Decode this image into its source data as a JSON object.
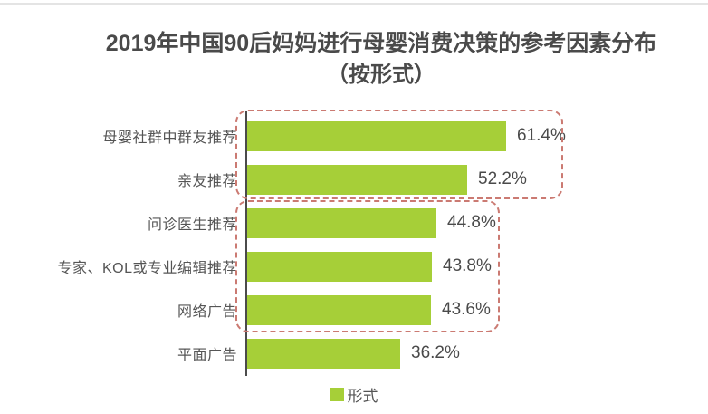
{
  "title": {
    "line1": "2019年中国90后妈妈进行母婴消费决策的参考因素分布",
    "line2": "（按形式）"
  },
  "legend": {
    "label": "形式"
  },
  "colors": {
    "bar_green": "#a6cf38",
    "group_outline_red": "#cb7a72",
    "title_text": "#4a4a4a",
    "label_text": "#555555",
    "axis_line": "#4b4b4b"
  },
  "chart_data": {
    "type": "bar",
    "orientation": "horizontal",
    "title": "2019年中国90后妈妈进行母婴消费决策的参考因素分布（按形式）",
    "series_name": "形式",
    "categories": [
      "母婴社群中群友推荐",
      "亲友推荐",
      "问诊医生推荐",
      "专家、KOL或专业编辑推荐",
      "网络广告",
      "平面广告"
    ],
    "values": [
      61.4,
      52.2,
      44.8,
      43.8,
      43.6,
      36.2
    ],
    "value_labels": [
      "61.4%",
      "52.2%",
      "44.8%",
      "43.8%",
      "43.6%",
      "36.2%"
    ],
    "xlabel": "",
    "ylabel": "",
    "grid": false,
    "legend_position": "bottom-center",
    "annotations": [
      {
        "type": "dashed-outline-group",
        "rows": [
          0,
          1
        ]
      },
      {
        "type": "dashed-outline-group",
        "rows": [
          2,
          3,
          4
        ]
      }
    ]
  }
}
